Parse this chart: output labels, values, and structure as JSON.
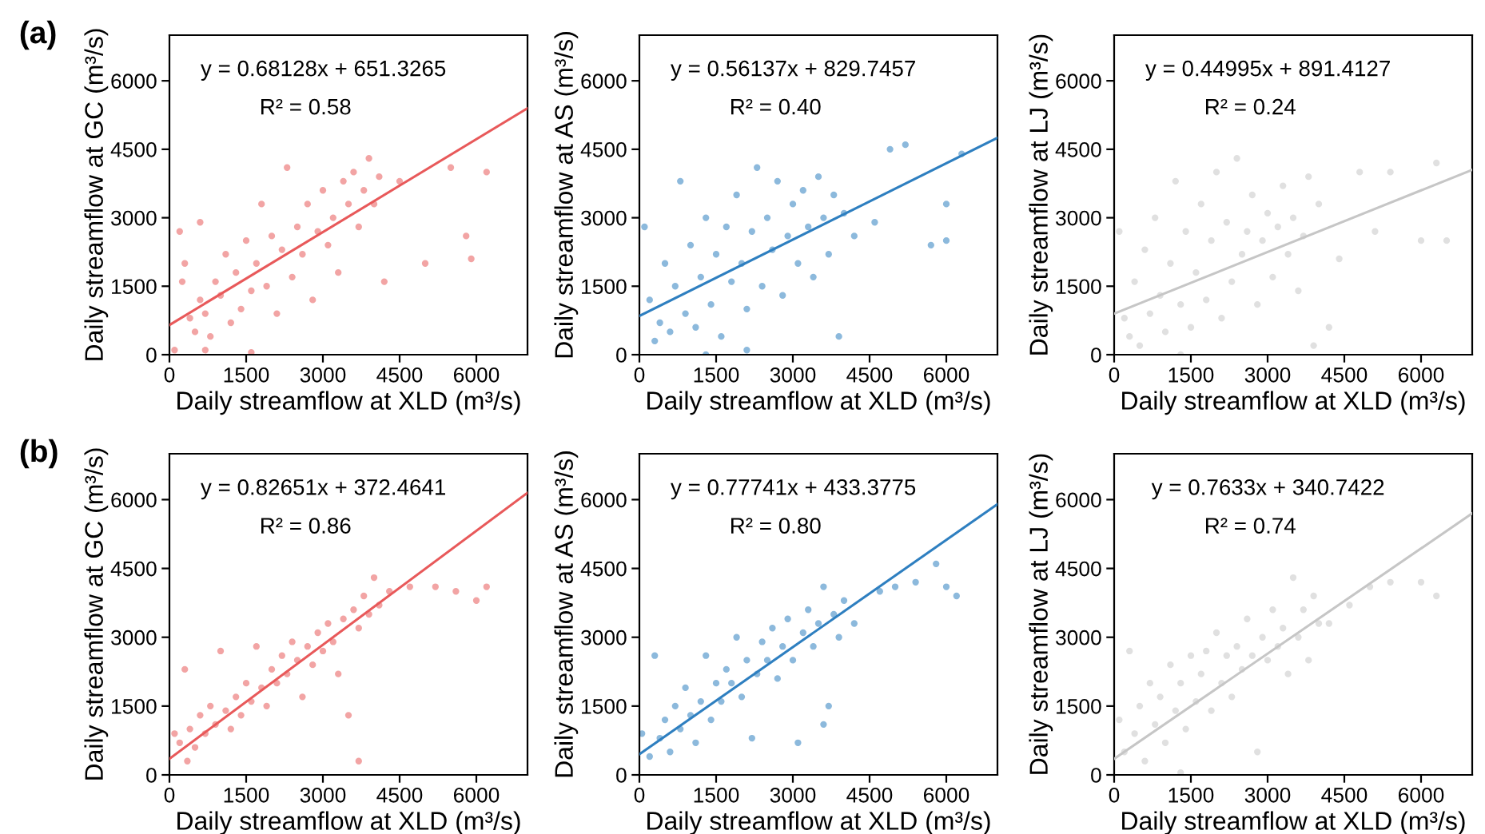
{
  "chart_data": [
    {
      "type": "scatter",
      "title": "(a)",
      "xlabel": "Daily streamflow at XLD (m³/s)",
      "ylabel": "Daily streamflow at GC (m³/s)",
      "xlim": [
        0,
        7000
      ],
      "ylim": [
        0,
        7000
      ],
      "xticks": [
        0,
        1500,
        3000,
        4500,
        6000
      ],
      "yticks": [
        0,
        1500,
        3000,
        4500,
        6000
      ],
      "grid": false,
      "legend": false,
      "annotations": [
        "y = 0.68128x + 651.3265",
        "R² = 0.58"
      ],
      "series": [
        {
          "marker": "circle",
          "color": "#e8595a",
          "x": [
            200,
            300,
            400,
            500,
            600,
            700,
            800,
            900,
            1000,
            1100,
            1200,
            1300,
            1400,
            1500,
            1600,
            1700,
            1800,
            1900,
            2000,
            2100,
            2200,
            2300,
            2400,
            2500,
            2600,
            2700,
            2800,
            2900,
            3000,
            3100,
            3200,
            3300,
            3400,
            3500,
            3600,
            3700,
            3800,
            3900,
            4000,
            4100,
            4200,
            4500,
            5000,
            5500,
            5800,
            5900,
            6200,
            100,
            700,
            1600,
            600,
            250
          ],
          "values": [
            2700,
            2000,
            800,
            500,
            1200,
            900,
            400,
            1600,
            1300,
            2200,
            700,
            1800,
            1000,
            2500,
            1400,
            2000,
            3300,
            1500,
            2600,
            900,
            2300,
            4100,
            1700,
            2800,
            2200,
            3300,
            1200,
            2700,
            3600,
            2400,
            3000,
            1800,
            3800,
            3300,
            4000,
            2800,
            3600,
            4300,
            3300,
            3900,
            1600,
            3800,
            2000,
            4100,
            2600,
            2100,
            4000,
            100,
            100,
            50,
            2900,
            1600
          ]
        },
        {
          "type": "line",
          "color": "#e8595a",
          "x": [
            0,
            7000
          ],
          "values": [
            650,
            5400
          ]
        }
      ]
    },
    {
      "type": "scatter",
      "xlabel": "Daily streamflow at XLD (m³/s)",
      "ylabel": "Daily streamflow at AS (m³/s)",
      "xlim": [
        0,
        7000
      ],
      "ylim": [
        0,
        7000
      ],
      "xticks": [
        0,
        1500,
        3000,
        4500,
        6000
      ],
      "yticks": [
        0,
        1500,
        3000,
        4500,
        6000
      ],
      "grid": false,
      "legend": false,
      "annotations": [
        "y = 0.56137x + 829.7457",
        "R² = 0.40"
      ],
      "series": [
        {
          "marker": "circle",
          "color": "#2e7fc0",
          "x": [
            100,
            200,
            300,
            400,
            500,
            600,
            700,
            800,
            900,
            1000,
            1100,
            1200,
            1300,
            1400,
            1500,
            1600,
            1700,
            1800,
            1900,
            2000,
            2100,
            2200,
            2300,
            2400,
            2500,
            2600,
            2700,
            2800,
            2900,
            3000,
            3100,
            3200,
            3300,
            3400,
            3500,
            3600,
            3700,
            3800,
            3900,
            4000,
            4200,
            4600,
            4900,
            5200,
            5700,
            6000,
            6000,
            6300,
            1300,
            2100
          ],
          "values": [
            2800,
            1200,
            300,
            700,
            2000,
            500,
            1500,
            3800,
            900,
            2400,
            600,
            1700,
            3000,
            1100,
            2200,
            400,
            2800,
            1600,
            3500,
            2000,
            1000,
            2700,
            4100,
            1500,
            3000,
            2300,
            3800,
            1300,
            2600,
            3300,
            2000,
            3600,
            2800,
            1700,
            3900,
            3000,
            2200,
            3500,
            400,
            3100,
            2600,
            2900,
            4500,
            4600,
            2400,
            3300,
            2500,
            4400,
            0,
            100
          ]
        },
        {
          "type": "line",
          "color": "#2e7fc0",
          "x": [
            0,
            7000
          ],
          "values": [
            850,
            4750
          ]
        }
      ]
    },
    {
      "type": "scatter",
      "xlabel": "Daily streamflow at XLD (m³/s)",
      "ylabel": "Daily streamflow at LJ (m³/s)",
      "xlim": [
        0,
        7000
      ],
      "ylim": [
        0,
        7000
      ],
      "xticks": [
        0,
        1500,
        3000,
        4500,
        6000
      ],
      "yticks": [
        0,
        1500,
        3000,
        4500,
        6000
      ],
      "grid": false,
      "legend": false,
      "annotations": [
        "y = 0.44995x + 891.4127",
        "R² = 0.24"
      ],
      "series": [
        {
          "marker": "circle",
          "color": "#c6c6c6",
          "x": [
            100,
            200,
            300,
            400,
            500,
            600,
            700,
            800,
            900,
            1000,
            1100,
            1200,
            1300,
            1400,
            1500,
            1600,
            1700,
            1800,
            1900,
            2000,
            2100,
            2200,
            2300,
            2400,
            2500,
            2600,
            2700,
            2800,
            2900,
            3000,
            3100,
            3200,
            3300,
            3400,
            3500,
            3600,
            3700,
            3800,
            3900,
            4000,
            4200,
            4400,
            4800,
            5100,
            5400,
            6000,
            6300,
            6500,
            1300
          ],
          "values": [
            2700,
            800,
            400,
            1600,
            200,
            2300,
            900,
            3000,
            1300,
            500,
            2000,
            3800,
            1100,
            2700,
            600,
            1800,
            3300,
            1200,
            2500,
            4000,
            800,
            2900,
            1600,
            4300,
            2200,
            2700,
            3500,
            1100,
            2500,
            3100,
            1700,
            2800,
            3700,
            2200,
            3000,
            1400,
            2600,
            3900,
            200,
            3300,
            600,
            2100,
            4000,
            2700,
            4000,
            2500,
            4200,
            2500,
            0
          ]
        },
        {
          "type": "line",
          "color": "#c6c6c6",
          "x": [
            0,
            7000
          ],
          "values": [
            900,
            4050
          ]
        }
      ]
    },
    {
      "type": "scatter",
      "title": "(b)",
      "xlabel": "Daily streamflow at XLD (m³/s)",
      "ylabel": "Daily streamflow at GC (m³/s)",
      "xlim": [
        0,
        7000
      ],
      "ylim": [
        0,
        7000
      ],
      "xticks": [
        0,
        1500,
        3000,
        4500,
        6000
      ],
      "yticks": [
        0,
        1500,
        3000,
        4500,
        6000
      ],
      "grid": false,
      "legend": false,
      "annotations": [
        "y = 0.82651x + 372.4641",
        "R² = 0.86"
      ],
      "series": [
        {
          "marker": "circle",
          "color": "#e8595a",
          "x": [
            100,
            200,
            300,
            350,
            400,
            500,
            600,
            700,
            800,
            900,
            1000,
            1100,
            1200,
            1300,
            1400,
            1500,
            1600,
            1700,
            1800,
            1900,
            2000,
            2100,
            2200,
            2300,
            2400,
            2500,
            2600,
            2700,
            2800,
            2900,
            3000,
            3100,
            3200,
            3300,
            3400,
            3500,
            3600,
            3700,
            3700,
            3800,
            3900,
            4000,
            4100,
            4300,
            4700,
            5200,
            5600,
            6000,
            6200
          ],
          "values": [
            900,
            700,
            2300,
            300,
            1000,
            600,
            1300,
            900,
            1500,
            1100,
            2700,
            1400,
            1000,
            1700,
            1300,
            2000,
            1600,
            2800,
            1900,
            1500,
            2300,
            2000,
            2600,
            2200,
            2900,
            2500,
            1700,
            2800,
            2400,
            3100,
            2700,
            3300,
            2900,
            2200,
            3400,
            1300,
            3600,
            300,
            3200,
            3900,
            3500,
            4300,
            3700,
            4000,
            4100,
            4100,
            4000,
            3800,
            4100
          ]
        },
        {
          "type": "line",
          "color": "#e8595a",
          "x": [
            0,
            7000
          ],
          "values": [
            350,
            6150
          ]
        }
      ]
    },
    {
      "type": "scatter",
      "xlabel": "Daily streamflow at XLD (m³/s)",
      "ylabel": "Daily streamflow at AS (m³/s)",
      "xlim": [
        0,
        7000
      ],
      "ylim": [
        0,
        7000
      ],
      "xticks": [
        0,
        1500,
        3000,
        4500,
        6000
      ],
      "yticks": [
        0,
        1500,
        3000,
        4500,
        6000
      ],
      "grid": false,
      "legend": false,
      "annotations": [
        "y = 0.77741x + 433.3775",
        "R² = 0.80"
      ],
      "series": [
        {
          "marker": "circle",
          "color": "#2e7fc0",
          "x": [
            50,
            200,
            300,
            400,
            500,
            600,
            700,
            800,
            900,
            1000,
            1100,
            1200,
            1300,
            1400,
            1500,
            1600,
            1700,
            1800,
            1900,
            2000,
            2100,
            2200,
            2300,
            2400,
            2500,
            2600,
            2700,
            2800,
            2900,
            3000,
            3100,
            3200,
            3300,
            3400,
            3500,
            3600,
            3700,
            3800,
            3900,
            4000,
            4200,
            4700,
            5000,
            5400,
            5800,
            6000,
            6200,
            3600
          ],
          "values": [
            900,
            400,
            2600,
            800,
            1200,
            500,
            1500,
            1000,
            1900,
            1300,
            700,
            1600,
            2600,
            1200,
            2000,
            1600,
            2300,
            2000,
            3000,
            1700,
            2500,
            800,
            2200,
            2900,
            2500,
            3200,
            2100,
            2800,
            3400,
            2500,
            700,
            3100,
            3600,
            2800,
            3300,
            4100,
            1500,
            3500,
            3000,
            3800,
            3300,
            4000,
            4100,
            4200,
            4600,
            4100,
            3900,
            1100
          ]
        },
        {
          "type": "line",
          "color": "#2e7fc0",
          "x": [
            0,
            7000
          ],
          "values": [
            450,
            5900
          ]
        }
      ]
    },
    {
      "type": "scatter",
      "xlabel": "Daily streamflow at XLD (m³/s)",
      "ylabel": "Daily streamflow at LJ (m³/s)",
      "xlim": [
        0,
        7000
      ],
      "ylim": [
        0,
        7000
      ],
      "xticks": [
        0,
        1500,
        3000,
        4500,
        6000
      ],
      "yticks": [
        0,
        1500,
        3000,
        4500,
        6000
      ],
      "grid": false,
      "legend": false,
      "annotations": [
        "y = 0.7633x + 340.7422",
        "R² = 0.74"
      ],
      "series": [
        {
          "marker": "circle",
          "color": "#c6c6c6",
          "x": [
            100,
            200,
            300,
            400,
            500,
            600,
            700,
            800,
            900,
            1000,
            1100,
            1200,
            1300,
            1400,
            1500,
            1600,
            1700,
            1800,
            1900,
            2000,
            2100,
            2200,
            2300,
            2400,
            2500,
            2600,
            2700,
            2800,
            2900,
            3000,
            3100,
            3200,
            3300,
            3400,
            3500,
            3600,
            3700,
            3800,
            3900,
            4000,
            4200,
            4600,
            5000,
            5400,
            6000,
            6300,
            1300
          ],
          "values": [
            1200,
            500,
            2700,
            900,
            1500,
            300,
            2000,
            1100,
            1700,
            700,
            2400,
            1400,
            2000,
            1000,
            2600,
            1600,
            2200,
            2700,
            1400,
            3100,
            2000,
            2600,
            1700,
            2800,
            2300,
            3400,
            2600,
            500,
            3000,
            2500,
            3600,
            2800,
            3200,
            2200,
            4300,
            3000,
            3600,
            2500,
            3900,
            3300,
            3300,
            3700,
            4100,
            4200,
            4200,
            3900,
            50
          ]
        },
        {
          "type": "line",
          "color": "#c6c6c6",
          "x": [
            0,
            7000
          ],
          "values": [
            350,
            5700
          ]
        }
      ]
    }
  ]
}
